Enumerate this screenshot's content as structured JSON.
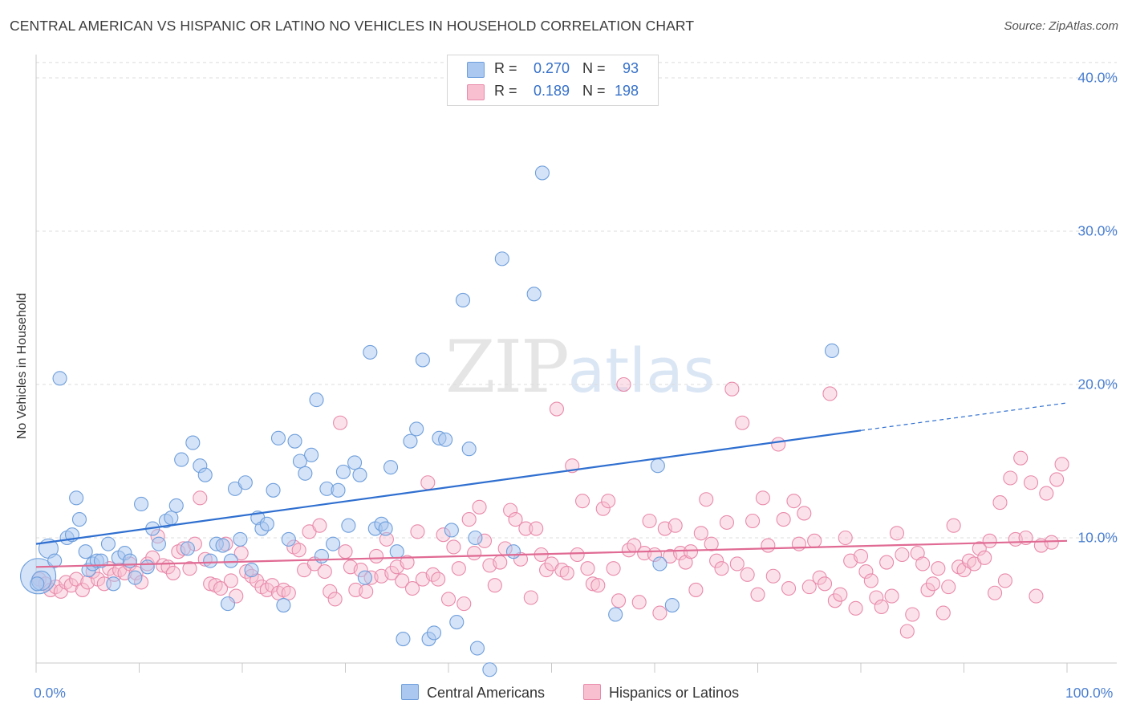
{
  "title": "CENTRAL AMERICAN VS HISPANIC OR LATINO NO VEHICLES IN HOUSEHOLD CORRELATION CHART",
  "source": "Source: ZipAtlas.com",
  "watermark": {
    "zip": "ZIP",
    "atlas": "atlas"
  },
  "legend_top": [
    {
      "r_label": "R =",
      "r_value": "0.270",
      "n_label": "N =",
      "n_value": "93"
    },
    {
      "r_label": "R =",
      "r_value": "0.189",
      "n_label": "N =",
      "n_value": "198"
    }
  ],
  "legend_bottom": [
    "Central Americans",
    "Hispanics or Latinos"
  ],
  "colors": {
    "blue_fill": "#aac8f0",
    "blue_stroke": "#6f9fdc",
    "blue_line": "#2f6fd0",
    "pink_fill": "#f7bfd0",
    "pink_stroke": "#e98aab",
    "pink_line": "#e06a93",
    "grid": "#dcdcdc",
    "axis_text": "#4a7fd0"
  },
  "chart_data": {
    "type": "scatter",
    "title": "CENTRAL AMERICAN VS HISPANIC OR LATINO NO VEHICLES IN HOUSEHOLD CORRELATION CHART",
    "xlabel": "",
    "ylabel": "No Vehicles in Household",
    "x_tick_labels": [
      "0.0%",
      "100.0%"
    ],
    "y_tick_labels": [
      "10.0%",
      "20.0%",
      "30.0%",
      "40.0%"
    ],
    "y_ticks": [
      10,
      20,
      30,
      40
    ],
    "xlim": [
      0,
      100
    ],
    "ylim": [
      0,
      41
    ],
    "grid": true,
    "legend_position": "top-center",
    "series": [
      {
        "name": "Central Americans",
        "R": 0.27,
        "N": 93,
        "trend": {
          "x0": 0,
          "y0": 9.6,
          "x1": 80,
          "y1": 17.0,
          "dashed_to_x": 100,
          "dashed_to_y": 18.8
        },
        "points": [
          [
            0.2,
            7.5
          ],
          [
            0.5,
            7.2
          ],
          [
            1.2,
            9.3
          ],
          [
            1.8,
            8.5
          ],
          [
            2.3,
            20.4
          ],
          [
            3,
            10
          ],
          [
            3.5,
            10.2
          ],
          [
            3.9,
            12.6
          ],
          [
            4.2,
            11.2
          ],
          [
            4.8,
            9.1
          ],
          [
            5.1,
            7.9
          ],
          [
            5.5,
            8.3
          ],
          [
            5.9,
            8.5
          ],
          [
            6.3,
            8.5
          ],
          [
            7,
            9.6
          ],
          [
            7.5,
            7.0
          ],
          [
            8,
            8.7
          ],
          [
            8.6,
            9.0
          ],
          [
            9.1,
            8.5
          ],
          [
            9.6,
            7.4
          ],
          [
            10.2,
            12.2
          ],
          [
            10.8,
            8.1
          ],
          [
            11.3,
            10.6
          ],
          [
            11.9,
            9.6
          ],
          [
            12.6,
            11.1
          ],
          [
            13.1,
            11.3
          ],
          [
            13.6,
            12.1
          ],
          [
            14.1,
            15.1
          ],
          [
            14.7,
            9.3
          ],
          [
            15.2,
            16.2
          ],
          [
            15.9,
            14.7
          ],
          [
            16.4,
            14.1
          ],
          [
            16.9,
            8.5
          ],
          [
            17.5,
            9.6
          ],
          [
            18.1,
            9.5
          ],
          [
            18.6,
            5.7
          ],
          [
            18.9,
            8.5
          ],
          [
            19.3,
            13.2
          ],
          [
            19.8,
            9.9
          ],
          [
            20.3,
            13.6
          ],
          [
            20.9,
            7.9
          ],
          [
            21.5,
            11.3
          ],
          [
            21.9,
            10.6
          ],
          [
            22.4,
            10.9
          ],
          [
            23,
            13.1
          ],
          [
            23.5,
            16.5
          ],
          [
            24,
            5.6
          ],
          [
            24.5,
            9.9
          ],
          [
            25.1,
            16.3
          ],
          [
            25.6,
            15.0
          ],
          [
            26.1,
            14.2
          ],
          [
            26.7,
            15.4
          ],
          [
            27.2,
            19.0
          ],
          [
            27.7,
            8.8
          ],
          [
            28.2,
            13.2
          ],
          [
            28.8,
            9.6
          ],
          [
            29.3,
            13.1
          ],
          [
            29.8,
            14.3
          ],
          [
            30.3,
            10.8
          ],
          [
            30.9,
            14.9
          ],
          [
            31.4,
            14.1
          ],
          [
            31.9,
            7.4
          ],
          [
            32.4,
            22.1
          ],
          [
            32.9,
            10.6
          ],
          [
            33.5,
            10.9
          ],
          [
            33.9,
            10.6
          ],
          [
            34.4,
            14.6
          ],
          [
            35.0,
            9.1
          ],
          [
            35.6,
            3.4
          ],
          [
            36.3,
            16.3
          ],
          [
            36.9,
            17.1
          ],
          [
            37.5,
            21.6
          ],
          [
            38.1,
            3.4
          ],
          [
            38.6,
            3.8
          ],
          [
            39.1,
            16.5
          ],
          [
            39.7,
            16.4
          ],
          [
            40.3,
            10.5
          ],
          [
            40.8,
            4.5
          ],
          [
            41.4,
            25.5
          ],
          [
            42,
            15.8
          ],
          [
            42.6,
            10.0
          ],
          [
            42.8,
            2.8
          ],
          [
            44,
            1.4
          ],
          [
            45.2,
            28.2
          ],
          [
            46.3,
            9.1
          ],
          [
            48.3,
            25.9
          ],
          [
            49.1,
            33.8
          ],
          [
            56.2,
            5.0
          ],
          [
            60.5,
            8.3
          ],
          [
            60.3,
            14.7
          ],
          [
            61.7,
            5.6
          ],
          [
            77.2,
            22.2
          ],
          [
            0.1,
            7.0
          ]
        ],
        "sizes": {
          "0": 22,
          "2": 12,
          "1": 12,
          "93": 14
        }
      },
      {
        "name": "Hispanics or Latinos",
        "R": 0.189,
        "N": 198,
        "trend": {
          "x0": 0,
          "y0": 8.1,
          "x1": 100,
          "y1": 9.8
        },
        "points": [
          [
            0.3,
            7.3
          ],
          [
            0.9,
            7.0
          ],
          [
            1.4,
            6.6
          ],
          [
            1.9,
            6.8
          ],
          [
            2.4,
            6.5
          ],
          [
            2.9,
            7.1
          ],
          [
            3.4,
            6.9
          ],
          [
            3.9,
            7.3
          ],
          [
            4.5,
            6.6
          ],
          [
            5.0,
            7.1
          ],
          [
            5.5,
            7.8
          ],
          [
            6.0,
            7.3
          ],
          [
            6.6,
            7.0
          ],
          [
            7.1,
            8.0
          ],
          [
            7.6,
            7.6
          ],
          [
            8.1,
            7.9
          ],
          [
            8.6,
            7.7
          ],
          [
            9.1,
            8.3
          ],
          [
            9.7,
            7.7
          ],
          [
            10.2,
            7.1
          ],
          [
            10.8,
            8.3
          ],
          [
            11.3,
            8.7
          ],
          [
            11.8,
            10.1
          ],
          [
            12.3,
            8.2
          ],
          [
            12.8,
            8.1
          ],
          [
            13.3,
            7.7
          ],
          [
            13.8,
            9.1
          ],
          [
            14.3,
            9.3
          ],
          [
            14.9,
            8.0
          ],
          [
            15.4,
            9.6
          ],
          [
            15.9,
            12.6
          ],
          [
            16.4,
            8.6
          ],
          [
            16.9,
            7.0
          ],
          [
            17.4,
            6.9
          ],
          [
            17.9,
            6.7
          ],
          [
            18.4,
            9.6
          ],
          [
            18.9,
            7.2
          ],
          [
            19.4,
            6.2
          ],
          [
            19.9,
            9.0
          ],
          [
            20.4,
            7.8
          ],
          [
            20.9,
            7.5
          ],
          [
            21.4,
            7.2
          ],
          [
            21.9,
            6.8
          ],
          [
            22.4,
            6.6
          ],
          [
            22.9,
            6.9
          ],
          [
            23.5,
            6.4
          ],
          [
            24.0,
            6.6
          ],
          [
            24.5,
            6.4
          ],
          [
            25.0,
            9.4
          ],
          [
            25.5,
            9.2
          ],
          [
            26.0,
            7.9
          ],
          [
            26.5,
            10.4
          ],
          [
            27.0,
            8.3
          ],
          [
            27.5,
            10.8
          ],
          [
            28.0,
            7.8
          ],
          [
            28.5,
            6.5
          ],
          [
            29.0,
            6.0
          ],
          [
            29.5,
            17.5
          ],
          [
            30.0,
            9.1
          ],
          [
            30.5,
            8.1
          ],
          [
            31.0,
            6.6
          ],
          [
            31.5,
            7.9
          ],
          [
            32.0,
            6.5
          ],
          [
            32.5,
            7.4
          ],
          [
            33.0,
            8.8
          ],
          [
            33.5,
            7.5
          ],
          [
            34.0,
            9.9
          ],
          [
            34.5,
            7.7
          ],
          [
            35.0,
            8.1
          ],
          [
            35.5,
            7.2
          ],
          [
            36.0,
            8.4
          ],
          [
            36.5,
            6.7
          ],
          [
            37.0,
            10.4
          ],
          [
            37.5,
            7.3
          ],
          [
            38.0,
            13.6
          ],
          [
            38.5,
            7.6
          ],
          [
            39.0,
            7.3
          ],
          [
            39.5,
            10.2
          ],
          [
            40.0,
            6.0
          ],
          [
            40.5,
            9.4
          ],
          [
            41.0,
            8.0
          ],
          [
            41.5,
            5.7
          ],
          [
            42.0,
            11.2
          ],
          [
            42.5,
            9.0
          ],
          [
            43.0,
            12.0
          ],
          [
            43.5,
            9.8
          ],
          [
            44.0,
            8.2
          ],
          [
            44.5,
            6.9
          ],
          [
            45.0,
            8.4
          ],
          [
            45.5,
            9.3
          ],
          [
            46.0,
            11.8
          ],
          [
            46.5,
            11.2
          ],
          [
            47.0,
            8.6
          ],
          [
            47.5,
            10.6
          ],
          [
            48.0,
            6.1
          ],
          [
            48.5,
            10.6
          ],
          [
            49.0,
            8.9
          ],
          [
            49.5,
            7.9
          ],
          [
            50.0,
            8.3
          ],
          [
            50.5,
            18.4
          ],
          [
            51.0,
            7.9
          ],
          [
            51.5,
            7.7
          ],
          [
            52.0,
            14.7
          ],
          [
            52.5,
            8.9
          ],
          [
            53.0,
            12.4
          ],
          [
            53.5,
            8.0
          ],
          [
            54.0,
            7.0
          ],
          [
            54.5,
            6.9
          ],
          [
            55.0,
            11.9
          ],
          [
            55.5,
            12.4
          ],
          [
            56.0,
            8.0
          ],
          [
            56.5,
            5.9
          ],
          [
            57.0,
            20.0
          ],
          [
            57.5,
            9.2
          ],
          [
            58.0,
            9.5
          ],
          [
            58.5,
            5.8
          ],
          [
            59.0,
            9.0
          ],
          [
            59.5,
            11.1
          ],
          [
            60.0,
            8.9
          ],
          [
            60.5,
            5.1
          ],
          [
            61.0,
            10.6
          ],
          [
            61.5,
            8.8
          ],
          [
            62.0,
            10.8
          ],
          [
            62.5,
            9.0
          ],
          [
            63.0,
            8.4
          ],
          [
            63.5,
            9.1
          ],
          [
            64.0,
            6.6
          ],
          [
            64.5,
            10.3
          ],
          [
            65.0,
            12.5
          ],
          [
            65.5,
            9.6
          ],
          [
            66.0,
            8.5
          ],
          [
            66.5,
            8.0
          ],
          [
            67.0,
            11.0
          ],
          [
            67.5,
            19.7
          ],
          [
            68.0,
            8.3
          ],
          [
            68.5,
            17.5
          ],
          [
            69.0,
            7.6
          ],
          [
            69.5,
            11.1
          ],
          [
            70.0,
            6.3
          ],
          [
            70.5,
            12.6
          ],
          [
            71.0,
            9.5
          ],
          [
            71.5,
            7.5
          ],
          [
            72.0,
            16.1
          ],
          [
            72.5,
            11.2
          ],
          [
            73.0,
            6.7
          ],
          [
            73.5,
            12.4
          ],
          [
            74.0,
            9.6
          ],
          [
            74.5,
            11.6
          ],
          [
            75.0,
            6.8
          ],
          [
            75.5,
            9.8
          ],
          [
            76.0,
            7.4
          ],
          [
            76.5,
            7.0
          ],
          [
            77.0,
            19.4
          ],
          [
            77.5,
            5.9
          ],
          [
            78.0,
            6.3
          ],
          [
            78.5,
            10.0
          ],
          [
            79.0,
            8.5
          ],
          [
            79.5,
            5.4
          ],
          [
            80.0,
            8.8
          ],
          [
            80.5,
            7.8
          ],
          [
            81.0,
            7.2
          ],
          [
            81.5,
            6.1
          ],
          [
            82.0,
            5.5
          ],
          [
            82.5,
            8.4
          ],
          [
            83.0,
            6.2
          ],
          [
            83.5,
            10.3
          ],
          [
            84.0,
            8.9
          ],
          [
            84.5,
            3.9
          ],
          [
            85.0,
            5.0
          ],
          [
            85.5,
            9.0
          ],
          [
            86.0,
            8.3
          ],
          [
            86.5,
            6.6
          ],
          [
            87.0,
            7.0
          ],
          [
            87.5,
            8.0
          ],
          [
            88.0,
            5.1
          ],
          [
            88.5,
            6.8
          ],
          [
            89.0,
            10.8
          ],
          [
            89.5,
            8.1
          ],
          [
            90.0,
            7.9
          ],
          [
            90.5,
            8.5
          ],
          [
            91.0,
            8.3
          ],
          [
            91.5,
            9.3
          ],
          [
            92.0,
            8.7
          ],
          [
            92.5,
            9.8
          ],
          [
            93.0,
            6.4
          ],
          [
            93.5,
            12.3
          ],
          [
            94.0,
            7.2
          ],
          [
            94.5,
            13.9
          ],
          [
            95.0,
            9.9
          ],
          [
            95.5,
            15.2
          ],
          [
            96.0,
            10.0
          ],
          [
            96.5,
            13.6
          ],
          [
            97.0,
            6.2
          ],
          [
            97.5,
            9.5
          ],
          [
            98.0,
            12.9
          ],
          [
            98.5,
            9.7
          ],
          [
            99.0,
            13.8
          ],
          [
            99.5,
            14.8
          ]
        ]
      }
    ]
  }
}
